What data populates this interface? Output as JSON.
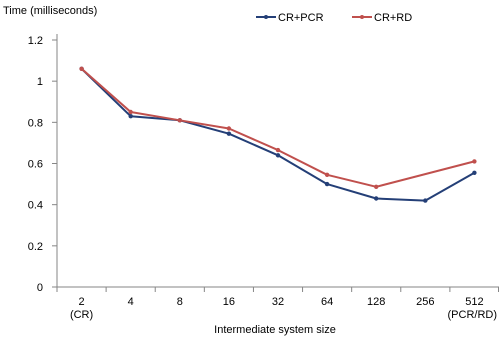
{
  "chart_data": {
    "type": "line",
    "title": "",
    "ylabel": "Time (milliseconds)",
    "xlabel": "Intermediate system size",
    "categories": [
      "2",
      "4",
      "8",
      "16",
      "32",
      "64",
      "128",
      "256",
      "512"
    ],
    "category_sublabels": [
      "(CR)",
      "",
      "",
      "",
      "",
      "",
      "",
      "",
      "(PCR/RD)"
    ],
    "y_ticks": [
      "0",
      "0.2",
      "0.4",
      "0.6",
      "0.8",
      "1",
      "1.2"
    ],
    "ylim": [
      0,
      1.2
    ],
    "y_step": 0.2,
    "grid": false,
    "legend_position": "top",
    "series": [
      {
        "name": "CR+PCR",
        "color": "#243f77",
        "values": [
          1.06,
          0.83,
          0.81,
          0.745,
          0.64,
          0.5,
          0.43,
          0.42,
          0.555
        ]
      },
      {
        "name": "CR+RD",
        "color": "#c0504d",
        "values": [
          1.06,
          0.85,
          0.81,
          0.77,
          0.665,
          0.545,
          0.487,
          null,
          0.61
        ]
      }
    ]
  }
}
